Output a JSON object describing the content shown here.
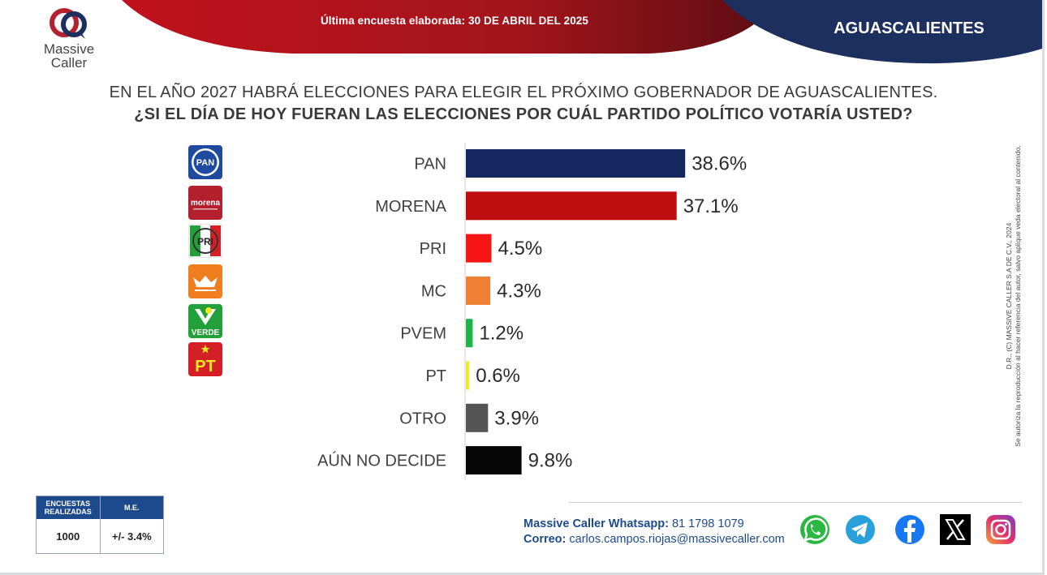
{
  "header": {
    "date_text": "Última encuesta elaborada: 30 DE ABRIL DEL 2025",
    "region": "AGUASCALIENTES",
    "colors": {
      "red_ribbon": "#a3141c",
      "navy_ribbon": "#1c2f5e"
    }
  },
  "brand": {
    "line1": "Massive",
    "line2": "Caller",
    "icon": "massive-caller-logo"
  },
  "question": {
    "line1": "EN EL AÑO 2027 HABRÁ ELECCIONES PARA ELEGIR EL PRÓXIMO GOBERNADOR DE AGUASCALIENTES.",
    "line2": "¿SI EL DÍA DE HOY FUERAN LAS ELECCIONES POR CUÁL PARTIDO POLÍTICO VOTARÍA USTED?"
  },
  "party_logos": [
    {
      "name": "pan-logo",
      "text": "PAN",
      "color": "#1e4aa0"
    },
    {
      "name": "morena-logo",
      "text": "morena",
      "color": "#b5202e"
    },
    {
      "name": "pri-logo",
      "text": "PRI",
      "color": "#d51f26"
    },
    {
      "name": "mc-logo",
      "text": "",
      "color": "#f07d1e"
    },
    {
      "name": "verde-logo",
      "text": "VERDE",
      "color": "#23a03a"
    },
    {
      "name": "pt-logo",
      "text": "PT",
      "color": "#d51f26"
    }
  ],
  "chart_data": {
    "type": "bar",
    "orientation": "horizontal",
    "categories": [
      "PAN",
      "MORENA",
      "PRI",
      "MC",
      "PVEM",
      "PT",
      "OTRO",
      "AÚN NO DECIDE"
    ],
    "values": [
      38.6,
      37.1,
      4.5,
      4.3,
      1.2,
      0.6,
      3.9,
      9.8
    ],
    "value_labels": [
      "38.6%",
      "37.1%",
      "4.5%",
      "4.3%",
      "1.2%",
      "0.6%",
      "3.9%",
      "9.8%"
    ],
    "colors": [
      "#14275e",
      "#c00d0d",
      "#f51515",
      "#ee7f33",
      "#1db44a",
      "#f2e826",
      "#555555",
      "#060606"
    ],
    "title": "",
    "xlabel": "",
    "ylabel": "",
    "grid": false,
    "legend": "none"
  },
  "legal": {
    "line1": "D.R., (C) MASSIVE CALLER S.A DE C.V., 2024",
    "line2": "Se autoriza la reproducción al hacer referencia del autor, salvo aplique veda electoral al contenido."
  },
  "stats": {
    "col1_header": "ENCUESTAS REALIZADAS",
    "col2_header": "M.E.",
    "col1_value": "1000",
    "col2_value": "+/- 3.4%"
  },
  "contact": {
    "whatsapp_label": "Massive Caller Whatsapp:",
    "whatsapp_value": "81 1798 1079",
    "email_label": "Correo:",
    "email_value": "carlos.campos.riojas@massivecaller.com"
  },
  "social": [
    "whatsapp-icon",
    "telegram-icon",
    "facebook-icon",
    "x-icon",
    "instagram-icon"
  ]
}
